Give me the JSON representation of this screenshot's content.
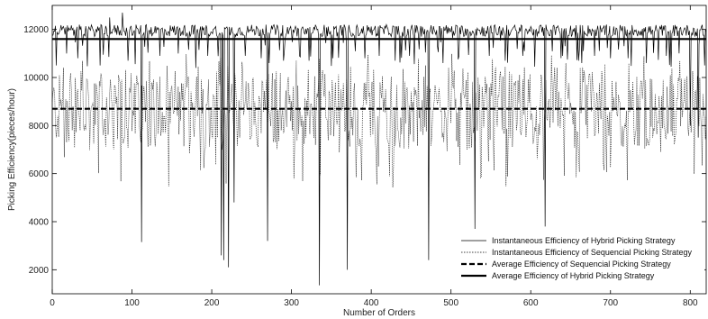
{
  "chart_data": {
    "type": "line",
    "title": "",
    "xlabel": "Number of Orders",
    "ylabel": "Picking Efficiency(pieces/hour)",
    "xlim": [
      0,
      820
    ],
    "ylim": [
      1000,
      13000
    ],
    "x_ticks": [
      0,
      100,
      200,
      300,
      400,
      500,
      600,
      700,
      800
    ],
    "y_ticks": [
      2000,
      4000,
      6000,
      8000,
      10000,
      12000
    ],
    "grid": false,
    "legend_position": "bottom-right",
    "colors": {
      "line": "#000000"
    },
    "series": [
      {
        "name": "Instantaneous Efficiency of Hybrid Picking Strategy",
        "style": "solid-thin",
        "baseline": 11950,
        "noise": 250,
        "dips": [
          {
            "x": 5,
            "y": 10500
          },
          {
            "x": 18,
            "y": 11000
          },
          {
            "x": 32,
            "y": 10800
          },
          {
            "x": 60,
            "y": 10500
          },
          {
            "x": 72,
            "y": 12500
          },
          {
            "x": 88,
            "y": 12700
          },
          {
            "x": 95,
            "y": 10700
          },
          {
            "x": 112,
            "y": 3150
          },
          {
            "x": 135,
            "y": 10900
          },
          {
            "x": 158,
            "y": 11000
          },
          {
            "x": 180,
            "y": 10400
          },
          {
            "x": 195,
            "y": 10900
          },
          {
            "x": 212,
            "y": 2600
          },
          {
            "x": 215,
            "y": 2400
          },
          {
            "x": 221,
            "y": 2100
          },
          {
            "x": 228,
            "y": 4800
          },
          {
            "x": 242,
            "y": 10900
          },
          {
            "x": 262,
            "y": 10800
          },
          {
            "x": 270,
            "y": 3200
          },
          {
            "x": 290,
            "y": 10700
          },
          {
            "x": 310,
            "y": 10900
          },
          {
            "x": 322,
            "y": 10700
          },
          {
            "x": 335,
            "y": 1350
          },
          {
            "x": 352,
            "y": 10800
          },
          {
            "x": 370,
            "y": 2000
          },
          {
            "x": 392,
            "y": 10800
          },
          {
            "x": 410,
            "y": 10900
          },
          {
            "x": 430,
            "y": 10700
          },
          {
            "x": 448,
            "y": 10900
          },
          {
            "x": 472,
            "y": 2400
          },
          {
            "x": 490,
            "y": 10600
          },
          {
            "x": 510,
            "y": 10900
          },
          {
            "x": 530,
            "y": 3700
          },
          {
            "x": 548,
            "y": 10900
          },
          {
            "x": 568,
            "y": 10700
          },
          {
            "x": 590,
            "y": 10900
          },
          {
            "x": 618,
            "y": 3800
          },
          {
            "x": 640,
            "y": 10900
          },
          {
            "x": 660,
            "y": 10700
          },
          {
            "x": 680,
            "y": 10900
          },
          {
            "x": 700,
            "y": 10800
          },
          {
            "x": 722,
            "y": 10800
          },
          {
            "x": 745,
            "y": 10600
          },
          {
            "x": 770,
            "y": 10900
          },
          {
            "x": 800,
            "y": 8000
          },
          {
            "x": 810,
            "y": 7500
          },
          {
            "x": 818,
            "y": 10500
          }
        ]
      },
      {
        "name": "Instantaneous Efficiency of Sequencial Picking Strategy",
        "style": "dotted",
        "mean": 8700,
        "spread": 1500,
        "points_count": 820
      },
      {
        "name": "Average Efficiency of Sequencial Picking Strategy",
        "style": "dashed-thick",
        "value": 8700
      },
      {
        "name": "Average Efficiency of Hybrid Picking Strategy",
        "style": "solid-thick",
        "value": 11600
      }
    ]
  }
}
